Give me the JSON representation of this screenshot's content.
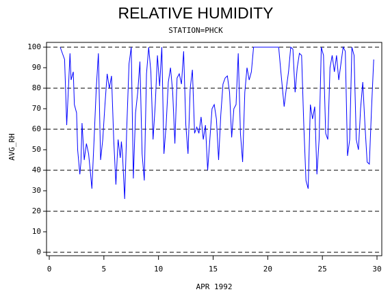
{
  "chart_data": {
    "type": "line",
    "title": "RELATIVE HUMIDITY",
    "subtitle": "STATION=PHCK",
    "x_label": "APR 1992",
    "y_label": "AVG_RH",
    "xlim": [
      0,
      30
    ],
    "xticks": [
      0,
      5,
      10,
      15,
      20,
      25,
      30
    ],
    "ylim": [
      0,
      100
    ],
    "yticks": [
      0,
      10,
      20,
      30,
      40,
      50,
      60,
      70,
      80,
      90,
      100
    ],
    "grid_lines": [
      0,
      20,
      40,
      60,
      80,
      100
    ],
    "series": [
      {
        "name": "AVG_RH",
        "color": "#0000ff",
        "x": [
          1.0,
          1.2,
          1.4,
          1.5,
          1.6,
          1.8,
          1.9,
          2.0,
          2.2,
          2.3,
          2.5,
          2.6,
          2.8,
          2.9,
          3.0,
          3.2,
          3.4,
          3.6,
          3.8,
          3.9,
          4.1,
          4.3,
          4.5,
          4.7,
          4.9,
          5.1,
          5.3,
          5.5,
          5.7,
          5.9,
          6.1,
          6.3,
          6.5,
          6.6,
          6.7,
          6.9,
          7.1,
          7.3,
          7.5,
          7.7,
          7.9,
          8.1,
          8.3,
          8.5,
          8.7,
          8.9,
          9.1,
          9.3,
          9.5,
          9.7,
          9.9,
          10.1,
          10.3,
          10.5,
          10.7,
          10.9,
          11.1,
          11.3,
          11.5,
          11.7,
          11.9,
          12.1,
          12.3,
          12.5,
          12.7,
          12.9,
          13.1,
          13.3,
          13.5,
          13.7,
          13.9,
          14.1,
          14.3,
          14.5,
          14.7,
          14.9,
          15.1,
          15.3,
          15.5,
          15.7,
          15.9,
          16.1,
          16.3,
          16.5,
          16.7,
          16.9,
          17.1,
          17.3,
          17.5,
          17.7,
          17.9,
          18.1,
          18.3,
          18.5,
          18.7,
          19.0,
          19.5,
          20.0,
          20.5,
          21.0,
          21.2,
          21.5,
          21.7,
          21.9,
          22.1,
          22.3,
          22.5,
          22.7,
          22.9,
          23.1,
          23.3,
          23.5,
          23.7,
          23.9,
          24.1,
          24.3,
          24.5,
          24.7,
          24.9,
          25.1,
          25.3,
          25.5,
          25.7,
          25.9,
          26.1,
          26.3,
          26.5,
          26.7,
          26.9,
          27.1,
          27.3,
          27.5,
          27.7,
          27.9,
          28.1,
          28.3,
          28.5,
          28.7,
          28.9,
          29.1,
          29.3,
          29.5,
          29.7
        ],
        "values": [
          100,
          97,
          94,
          78,
          62,
          85,
          97,
          84,
          88,
          72,
          68,
          50,
          38,
          44,
          63,
          45,
          53,
          48,
          37,
          31,
          55,
          80,
          97,
          45,
          55,
          72,
          87,
          80,
          86,
          55,
          33,
          55,
          46,
          54,
          48,
          26,
          62,
          92,
          100,
          36,
          68,
          78,
          93,
          48,
          35,
          87,
          100,
          88,
          55,
          72,
          96,
          81,
          100,
          48,
          62,
          83,
          90,
          78,
          53,
          85,
          87,
          82,
          98,
          62,
          48,
          80,
          89,
          58,
          61,
          58,
          66,
          55,
          62,
          40,
          55,
          70,
          72,
          65,
          45,
          67,
          82,
          85,
          86,
          78,
          56,
          70,
          72,
          97,
          58,
          44,
          78,
          90,
          84,
          88,
          100,
          100,
          100,
          100,
          100,
          100,
          88,
          71,
          80,
          88,
          100,
          99,
          78,
          90,
          97,
          96,
          62,
          35,
          31,
          72,
          65,
          71,
          38,
          55,
          100,
          96,
          58,
          55,
          90,
          96,
          88,
          96,
          84,
          92,
          100,
          98,
          47,
          55,
          100,
          96,
          55,
          50,
          70,
          83,
          62,
          44,
          43,
          70,
          94
        ]
      }
    ]
  }
}
